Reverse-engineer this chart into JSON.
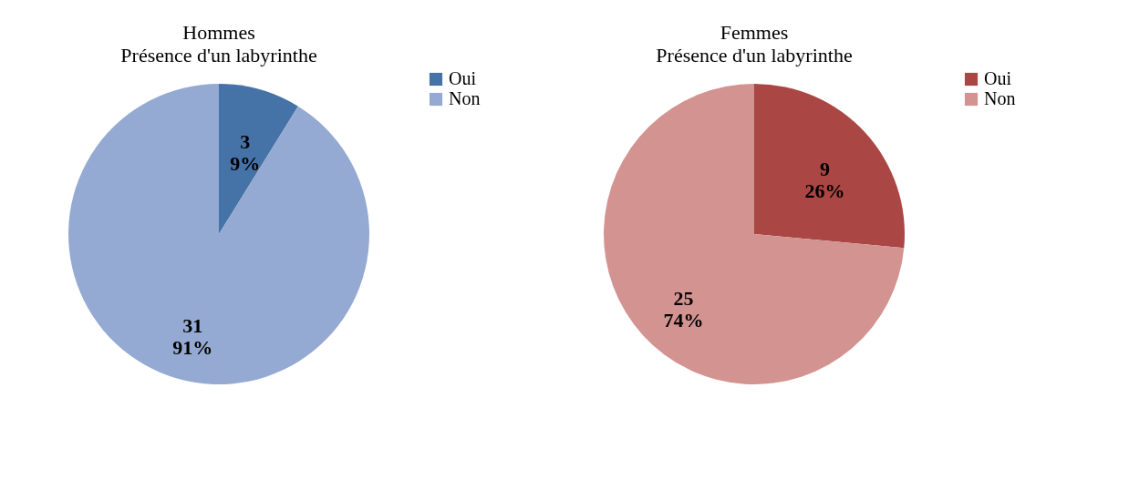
{
  "chart_data": [
    {
      "type": "pie",
      "title": "Hommes",
      "subtitle": "Présence d'un labyrinthe",
      "categories": [
        "Oui",
        "Non"
      ],
      "values": [
        3,
        31
      ],
      "colors": [
        "#4572a7",
        "#95aad2"
      ],
      "value_labels": [
        "3\n9%",
        "31\n91%"
      ],
      "legend": "right"
    },
    {
      "type": "pie",
      "title": "Femmes",
      "subtitle": "Présence d'un labyrinthe",
      "categories": [
        "Oui",
        "Non"
      ],
      "values": [
        9,
        25
      ],
      "colors": [
        "#aa4643",
        "#d39391"
      ],
      "value_labels": [
        "9\n26%",
        "25\n74%"
      ],
      "legend": "right"
    }
  ]
}
